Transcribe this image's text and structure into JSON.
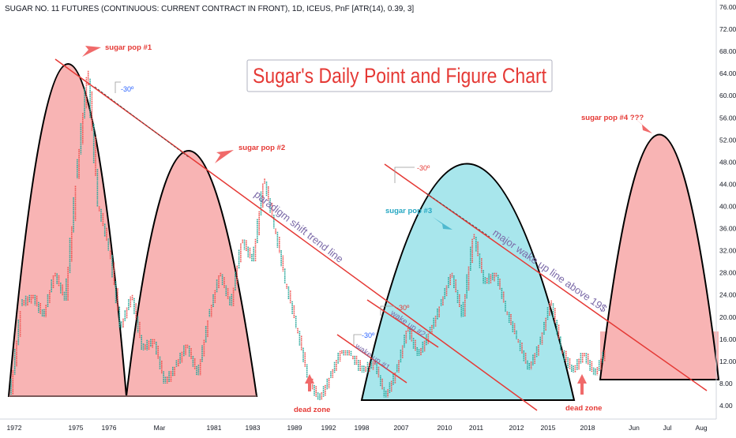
{
  "header": {
    "symbol_line": "SUGAR NO. 11 FUTURES (CONTINUOUS: CURRENT CONTRACT IN FRONT), 1D, ICEUS, PnF [ATR(14), 0.39, 3]"
  },
  "title_box": {
    "text": "Sugar's Daily Point and Figure Chart",
    "color": "#e53935"
  },
  "colors": {
    "pop_fill_red": "#f8b4b4",
    "pop_fill_cyan": "#a8e6ec",
    "pop_arc": "#000000",
    "trend_line": "#e53935",
    "x_marks": "#26a69a",
    "o_marks": "#ef5350",
    "callout_red": "#e53935",
    "callout_cyan": "#26a7c2",
    "trend_label": "#7b6aa8"
  },
  "chart_data": {
    "type": "point-and-figure",
    "title": "Sugar's Daily Point and Figure Chart",
    "ylabel": "",
    "xlabel": "",
    "ylim": [
      3.0,
      77.0
    ],
    "y_ticks": [
      "76.00",
      "72.00",
      "68.00",
      "64.00",
      "60.00",
      "56.00",
      "52.00",
      "48.00",
      "44.00",
      "40.00",
      "36.00",
      "32.00",
      "28.00",
      "24.00",
      "20.00",
      "16.00",
      "12.00",
      "8.00",
      "4.00"
    ],
    "x_ticks": [
      "1972",
      "1975",
      "1976",
      "Mar",
      "1981",
      "1983",
      "1989",
      "1992",
      "1998",
      "2007",
      "2010",
      "2011",
      "2012",
      "2015",
      "2018",
      "Jun",
      "Jul",
      "Aug"
    ],
    "grid": false,
    "legend": "none",
    "price_path": [
      {
        "t": "1972",
        "y": 6.0
      },
      {
        "t": "",
        "y": 22.0
      },
      {
        "t": "",
        "y": 24.0
      },
      {
        "t": "",
        "y": 20.0
      },
      {
        "t": "",
        "y": 28.0
      },
      {
        "t": "",
        "y": 23.0
      },
      {
        "t": "",
        "y": 45.0
      },
      {
        "t": "",
        "y": 64.5
      },
      {
        "t": "1975",
        "y": 40.0
      },
      {
        "t": "",
        "y": 32.0
      },
      {
        "t": "",
        "y": 18.0
      },
      {
        "t": "",
        "y": 24.0
      },
      {
        "t": "",
        "y": 14.0
      },
      {
        "t": "",
        "y": 16.0
      },
      {
        "t": "1976",
        "y": 8.0
      },
      {
        "t": "",
        "y": 11.0
      },
      {
        "t": "",
        "y": 15.0
      },
      {
        "t": "",
        "y": 9.5
      },
      {
        "t": "Mar",
        "y": 20.0
      },
      {
        "t": "",
        "y": 28.0
      },
      {
        "t": "",
        "y": 22.0
      },
      {
        "t": "",
        "y": 34.0
      },
      {
        "t": "",
        "y": 30.0
      },
      {
        "t": "1981",
        "y": 45.0
      },
      {
        "t": "",
        "y": 36.0
      },
      {
        "t": "",
        "y": 26.0
      },
      {
        "t": "",
        "y": 18.0
      },
      {
        "t": "1983",
        "y": 9.0
      },
      {
        "t": "",
        "y": 5.0
      },
      {
        "t": "",
        "y": 9.0
      },
      {
        "t": "1989",
        "y": 14.0
      },
      {
        "t": "",
        "y": 13.0
      },
      {
        "t": "1992",
        "y": 10.0
      },
      {
        "t": "",
        "y": 12.0
      },
      {
        "t": "1998",
        "y": 5.5
      },
      {
        "t": "",
        "y": 10.0
      },
      {
        "t": "",
        "y": 18.0
      },
      {
        "t": "2007",
        "y": 13.0
      },
      {
        "t": "",
        "y": 17.0
      },
      {
        "t": "",
        "y": 22.0
      },
      {
        "t": "2010",
        "y": 28.0
      },
      {
        "t": "",
        "y": 20.0
      },
      {
        "t": "2011",
        "y": 35.0
      },
      {
        "t": "",
        "y": 26.0
      },
      {
        "t": "",
        "y": 28.0
      },
      {
        "t": "2012",
        "y": 21.0
      },
      {
        "t": "",
        "y": 16.0
      },
      {
        "t": "2015",
        "y": 10.5
      },
      {
        "t": "",
        "y": 15.0
      },
      {
        "t": "",
        "y": 23.0
      },
      {
        "t": "",
        "y": 14.0
      },
      {
        "t": "2018",
        "y": 10.0
      },
      {
        "t": "",
        "y": 13.5
      },
      {
        "t": "",
        "y": 9.5
      },
      {
        "t": "",
        "y": 14.0
      }
    ],
    "annotations": {
      "pop1": "sugar pop #1",
      "pop2": "sugar pop #2",
      "pop3": "sugar pop #3",
      "pop4": "sugar pop #4 ???",
      "paradigm": "paradigm shift trend line",
      "major": "major wake up line above 19$",
      "wake1": "wake up #1",
      "wake2": "wake up #2",
      "dead1": "dead zone",
      "dead2": "dead zone",
      "angle1": "-30º",
      "angle2": "-30º",
      "angle3": "-30º",
      "angle4": "-30º"
    }
  }
}
